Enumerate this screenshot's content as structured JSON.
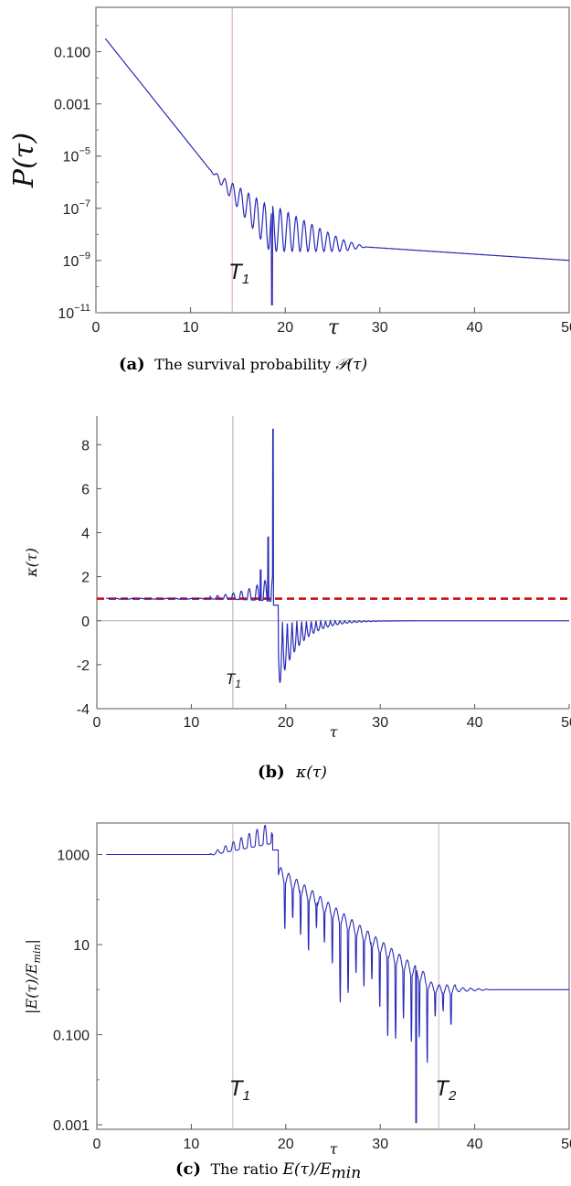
{
  "chart_data": [
    {
      "type": "line",
      "panel": "a",
      "caption_label": "(a)",
      "caption_text": "The survival probability ",
      "caption_math": "𝒫(τ)",
      "xlabel": "τ",
      "ylabel": "P(τ)",
      "xlim": [
        0,
        50
      ],
      "ylim_log10": [
        -11,
        0.7
      ],
      "yscale": "log",
      "x_ticks": [
        "0",
        "10",
        "20",
        "30",
        "40",
        "50"
      ],
      "y_ticks": [
        {
          "text": "0.100",
          "exp": null,
          "log": -1
        },
        {
          "text": "0.001",
          "exp": null,
          "log": -3
        },
        {
          "text": "10",
          "exp": "−5",
          "log": -5
        },
        {
          "text": "10",
          "exp": "−7",
          "log": -7
        },
        {
          "text": "10",
          "exp": "−9",
          "log": -9
        },
        {
          "text": "10",
          "exp": "−11",
          "log": -11
        }
      ],
      "vlines": [
        {
          "x": 14.4,
          "label": "T",
          "sub": "1"
        }
      ],
      "color": "#2a2ab8",
      "points": [
        [
          1,
          0.3
        ],
        [
          4,
          0.02
        ],
        [
          8,
          0.0004
        ],
        [
          12,
          1e-05
        ],
        [
          14.4,
          8e-07
        ],
        [
          16,
          2e-07
        ],
        [
          18,
          4e-08
        ],
        [
          20,
          1.2e-08
        ],
        [
          24,
          5e-09
        ],
        [
          28,
          3e-09
        ],
        [
          40,
          1.7e-09
        ],
        [
          50,
          1e-09
        ]
      ]
    },
    {
      "type": "line",
      "panel": "b",
      "caption_label": "(b)",
      "caption_text": "",
      "caption_math": "κ(τ)",
      "xlabel": "τ",
      "ylabel": "κ(τ)",
      "xlim": [
        0,
        50
      ],
      "ylim": [
        -4,
        9.3
      ],
      "yscale": "linear",
      "x_ticks": [
        "0",
        "10",
        "20",
        "30",
        "40",
        "50"
      ],
      "y_ticks": [
        {
          "text": "8",
          "v": 8
        },
        {
          "text": "6",
          "v": 6
        },
        {
          "text": "4",
          "v": 4
        },
        {
          "text": "2",
          "v": 2
        },
        {
          "text": "0",
          "v": 0
        },
        {
          "text": "-2",
          "v": -2
        },
        {
          "text": "-4",
          "v": -4
        }
      ],
      "vlines": [
        {
          "x": 14.4,
          "label": "T",
          "sub": "1"
        }
      ],
      "hline_dashed": 1,
      "color": "#2a2ab8",
      "dashed_color": "#d01010",
      "points": [
        [
          1,
          1.0
        ],
        [
          10,
          1.02
        ],
        [
          14.4,
          1.05
        ],
        [
          17,
          1.6
        ],
        [
          18.2,
          3.8
        ],
        [
          18.7,
          8.7
        ],
        [
          19.4,
          -3.4
        ],
        [
          20.5,
          -1.3
        ],
        [
          25,
          -0.1
        ],
        [
          30,
          0.0
        ],
        [
          50,
          0.0
        ]
      ]
    },
    {
      "type": "line",
      "panel": "c",
      "caption_label": "(c)",
      "caption_text": "The ratio ",
      "caption_math": "E(τ)/E",
      "caption_math_sub": "min",
      "xlabel": "τ",
      "ylabel": "|E(τ)/E",
      "ylabel_sub": "min",
      "ylabel_end": "|",
      "xlim": [
        0,
        50
      ],
      "ylim_log10": [
        -3.1,
        3.7
      ],
      "yscale": "log",
      "x_ticks": [
        "0",
        "10",
        "20",
        "30",
        "40",
        "50"
      ],
      "y_ticks": [
        {
          "text": "1000",
          "log": 3
        },
        {
          "text": "10",
          "log": 1
        },
        {
          "text": "0.100",
          "log": -1
        },
        {
          "text": "0.001",
          "log": -3
        }
      ],
      "vlines": [
        {
          "x": 14.4,
          "label": "T",
          "sub": "1"
        },
        {
          "x": 36.2,
          "label": "T",
          "sub": "2"
        }
      ],
      "color": "#2a2ab8",
      "points": [
        [
          1,
          1000
        ],
        [
          12,
          1000
        ],
        [
          15,
          1200
        ],
        [
          18,
          2500
        ],
        [
          19,
          800
        ],
        [
          22,
          150
        ],
        [
          26,
          30
        ],
        [
          30,
          5
        ],
        [
          34,
          1.2
        ],
        [
          36.2,
          1.0
        ],
        [
          40,
          1.0
        ],
        [
          50,
          1.0
        ]
      ]
    }
  ]
}
